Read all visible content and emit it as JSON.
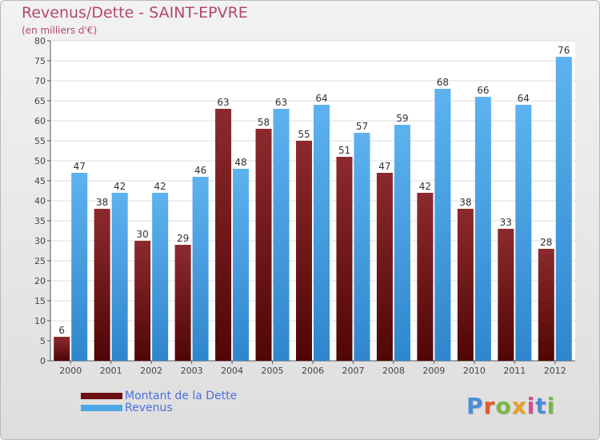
{
  "title": "Revenus/Dette - SAINT-EPVRE",
  "subtitle": "(en milliers d'€)",
  "logo": {
    "text": "Proxiti",
    "letter_colors": [
      "#4a8ed8",
      "#e05a2a",
      "#7ab648",
      "#e8a020",
      "#d94c8a",
      "#4a8ed8",
      "#7ab648"
    ]
  },
  "legend": [
    {
      "label": "Montant de la Dette",
      "color": "#6b0f12"
    },
    {
      "label": "Revenus",
      "color": "#4ea6e6"
    }
  ],
  "chart_data": {
    "type": "bar",
    "title": "Revenus/Dette - SAINT-EPVRE",
    "subtitle": "(en milliers d'€)",
    "categories": [
      "2000",
      "2001",
      "2002",
      "2003",
      "2004",
      "2005",
      "2006",
      "2007",
      "2008",
      "2009",
      "2010",
      "2011",
      "2012"
    ],
    "series": [
      {
        "name": "Montant de la Dette",
        "color": "#6b0f12",
        "values": [
          6,
          38,
          30,
          29,
          63,
          58,
          55,
          51,
          47,
          42,
          38,
          33,
          28
        ]
      },
      {
        "name": "Revenus",
        "color": "#4ea6e6",
        "values": [
          47,
          42,
          42,
          46,
          48,
          63,
          64,
          57,
          59,
          68,
          66,
          64,
          76
        ]
      }
    ],
    "ylim": [
      0,
      80
    ],
    "yticks": [
      0,
      5,
      10,
      15,
      20,
      25,
      30,
      35,
      40,
      45,
      50,
      55,
      60,
      65,
      70,
      75,
      80
    ],
    "grid": "horizontal",
    "data_labels": true,
    "legend_position": "bottom-left"
  }
}
